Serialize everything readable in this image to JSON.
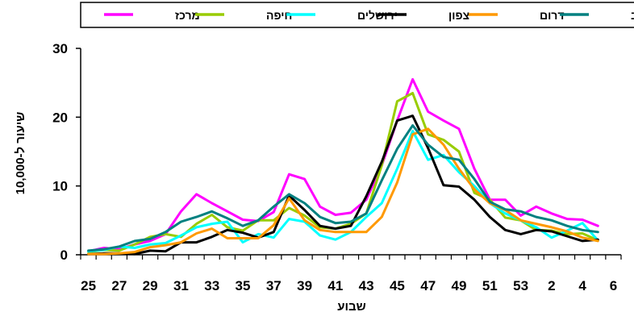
{
  "chart_data": {
    "type": "line",
    "xlabel": "שבוע",
    "ylabel": "שיעור ל-10,000",
    "ylim": [
      0,
      30
    ],
    "yticks": [
      0,
      10,
      20,
      30
    ],
    "x_tick_labels": [
      "25",
      "27",
      "29",
      "31",
      "33",
      "35",
      "37",
      "39",
      "41",
      "43",
      "45",
      "47",
      "49",
      "51",
      "53",
      "2",
      "4",
      "6"
    ],
    "weeks": [
      "25",
      "26",
      "27",
      "28",
      "29",
      "30",
      "31",
      "32",
      "33",
      "34",
      "35",
      "36",
      "37",
      "38",
      "39",
      "40",
      "41",
      "42",
      "43",
      "44",
      "45",
      "46",
      "47",
      "48",
      "49",
      "50",
      "51",
      "52",
      "53",
      "1",
      "2",
      "3",
      "4",
      "5"
    ],
    "legend_position": "top",
    "grid": false,
    "series": [
      {
        "name": "מרכז",
        "color": "#FF00FF",
        "values": [
          0.5,
          1.0,
          0.8,
          1.5,
          2.0,
          3.0,
          6.3,
          8.8,
          7.5,
          6.3,
          5.1,
          4.9,
          6.2,
          11.7,
          11.0,
          7.0,
          5.8,
          6.1,
          8.0,
          13.0,
          19.5,
          25.5,
          20.8,
          19.5,
          18.3,
          12.5,
          8.0,
          8.0,
          5.7,
          7.0,
          6.0,
          5.2,
          5.1,
          4.2
        ]
      },
      {
        "name": "חיפה",
        "color": "#99CC00",
        "values": [
          0.4,
          0.7,
          0.6,
          1.5,
          2.6,
          3.0,
          2.6,
          4.5,
          5.8,
          4.0,
          3.5,
          5.0,
          5.0,
          6.8,
          5.7,
          4.0,
          3.8,
          4.5,
          6.0,
          13.0,
          22.3,
          23.5,
          17.5,
          16.7,
          15.0,
          9.0,
          8.0,
          5.4,
          5.0,
          3.6,
          3.5,
          3.0,
          3.1,
          2.1
        ]
      },
      {
        "name": "ירושלים",
        "color": "#00FFFF",
        "values": [
          0.5,
          0.7,
          1.2,
          1.0,
          1.5,
          1.7,
          2.8,
          4.0,
          4.5,
          4.8,
          1.8,
          3.0,
          2.5,
          5.2,
          4.8,
          2.8,
          2.2,
          3.3,
          5.5,
          7.5,
          12.5,
          18.0,
          13.8,
          14.5,
          12.0,
          10.0,
          7.5,
          6.0,
          5.0,
          4.0,
          2.5,
          3.5,
          4.6,
          2.1
        ]
      },
      {
        "name": "צפון",
        "color": "#000000",
        "values": [
          0.1,
          0.2,
          0.2,
          0.1,
          0.6,
          0.5,
          1.8,
          1.8,
          2.6,
          3.6,
          3.2,
          2.5,
          3.3,
          8.6,
          6.5,
          4.2,
          3.8,
          4.2,
          8.5,
          13.5,
          19.5,
          20.2,
          15.5,
          10.1,
          9.9,
          8.0,
          5.5,
          3.6,
          3.0,
          3.6,
          3.4,
          2.7,
          2.0,
          2.2
        ]
      },
      {
        "name": "דרום",
        "color": "#FF9900",
        "values": [
          0.1,
          0.1,
          0.2,
          0.4,
          1.1,
          1.4,
          1.8,
          3.1,
          3.8,
          2.4,
          2.4,
          2.4,
          4.3,
          8.2,
          5.0,
          3.6,
          3.3,
          3.3,
          3.3,
          5.5,
          10.5,
          17.5,
          18.3,
          16.0,
          12.5,
          9.5,
          7.5,
          6.5,
          5.0,
          4.5,
          4.0,
          3.4,
          2.5,
          2.0
        ]
      },
      {
        "name": "תל אביב",
        "color": "#008080",
        "values": [
          0.6,
          0.8,
          1.2,
          2.0,
          2.3,
          3.3,
          4.8,
          5.5,
          6.3,
          5.3,
          4.2,
          5.0,
          7.0,
          8.8,
          7.5,
          5.5,
          4.6,
          4.8,
          6.0,
          10.8,
          15.4,
          18.8,
          16.0,
          14.2,
          13.8,
          11.0,
          7.7,
          6.6,
          6.3,
          5.5,
          5.0,
          4.2,
          3.6,
          3.3
        ]
      }
    ]
  }
}
